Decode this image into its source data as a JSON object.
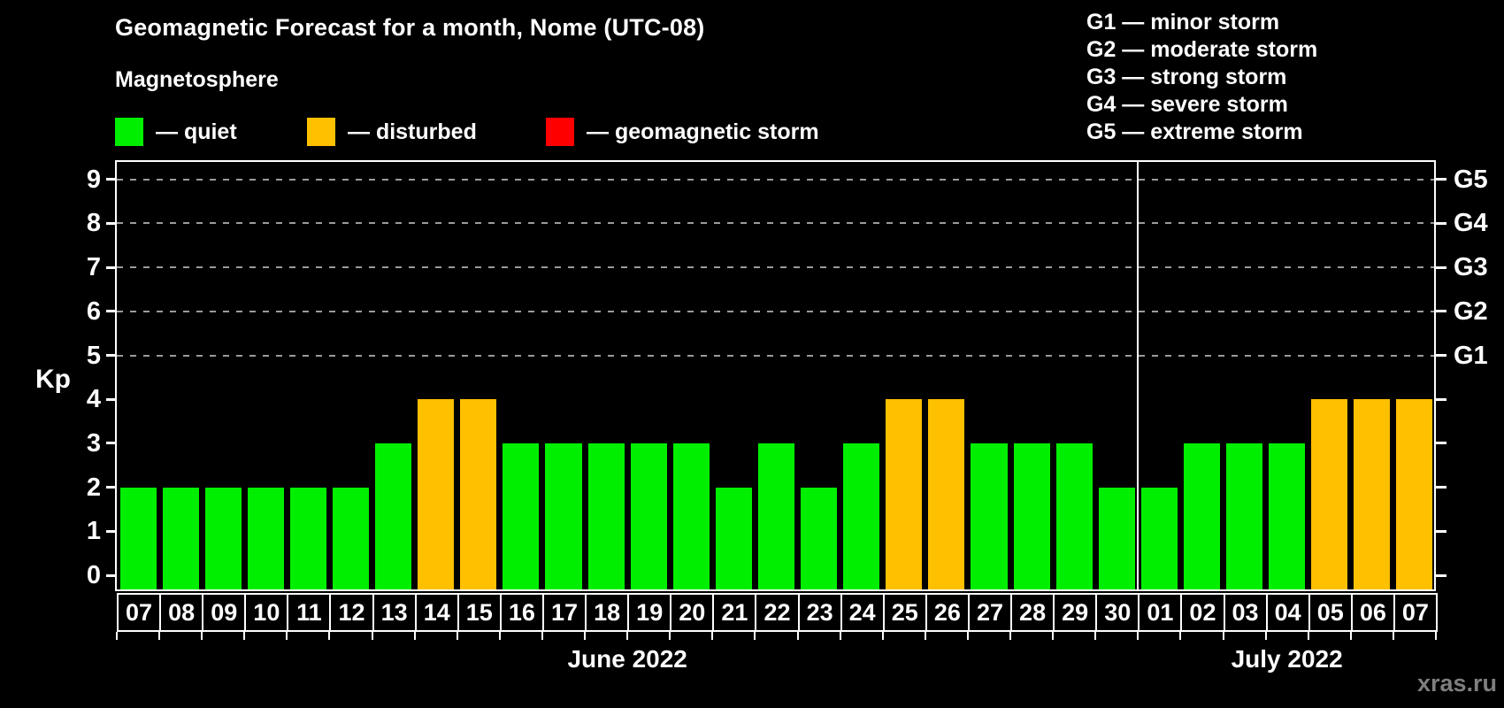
{
  "title": "Geomagnetic Forecast for a month, Nome (UTC-08)",
  "subtitle": "Magnetosphere",
  "dash": "—",
  "legend": {
    "items": [
      {
        "label": "quiet",
        "status": "quiet",
        "color": "#00ef00"
      },
      {
        "label": "disturbed",
        "status": "disturbed",
        "color": "#ffc000"
      },
      {
        "label": "geomagnetic storm",
        "status": "storm",
        "color": "#ff0000"
      }
    ]
  },
  "g_scale_legend": [
    {
      "code": "G1",
      "desc": "minor storm"
    },
    {
      "code": "G2",
      "desc": "moderate storm"
    },
    {
      "code": "G3",
      "desc": "strong storm"
    },
    {
      "code": "G4",
      "desc": "severe storm"
    },
    {
      "code": "G5",
      "desc": "extreme storm"
    }
  ],
  "watermark": "xras.ru",
  "colors": {
    "quiet": "#00ef00",
    "disturbed": "#ffc000",
    "storm": "#ff0000",
    "grid": "#9b9b9b",
    "background": "#000000"
  },
  "chart_data": {
    "type": "bar",
    "title": "Geomagnetic Forecast for a month, Nome (UTC-08)",
    "ylabel": "Kp",
    "ylim": [
      0,
      9
    ],
    "y_ticks": [
      "0",
      "1",
      "2",
      "3",
      "4",
      "5",
      "6",
      "7",
      "8",
      "9"
    ],
    "right_axis_labels": [
      {
        "code": "G1",
        "kp": 5
      },
      {
        "code": "G2",
        "kp": 6
      },
      {
        "code": "G3",
        "kp": 7
      },
      {
        "code": "G4",
        "kp": 8
      },
      {
        "code": "G5",
        "kp": 9
      }
    ],
    "gridlines_at_kp": [
      5,
      6,
      7,
      8,
      9
    ],
    "legend_position": "top-left",
    "months": [
      {
        "label": "June 2022",
        "days": [
          {
            "day": "07",
            "kp": 2,
            "status": "quiet"
          },
          {
            "day": "08",
            "kp": 2,
            "status": "quiet"
          },
          {
            "day": "09",
            "kp": 2,
            "status": "quiet"
          },
          {
            "day": "10",
            "kp": 2,
            "status": "quiet"
          },
          {
            "day": "11",
            "kp": 2,
            "status": "quiet"
          },
          {
            "day": "12",
            "kp": 2,
            "status": "quiet"
          },
          {
            "day": "13",
            "kp": 3,
            "status": "quiet"
          },
          {
            "day": "14",
            "kp": 4,
            "status": "disturbed"
          },
          {
            "day": "15",
            "kp": 4,
            "status": "disturbed"
          },
          {
            "day": "16",
            "kp": 3,
            "status": "quiet"
          },
          {
            "day": "17",
            "kp": 3,
            "status": "quiet"
          },
          {
            "day": "18",
            "kp": 3,
            "status": "quiet"
          },
          {
            "day": "19",
            "kp": 3,
            "status": "quiet"
          },
          {
            "day": "20",
            "kp": 3,
            "status": "quiet"
          },
          {
            "day": "21",
            "kp": 2,
            "status": "quiet"
          },
          {
            "day": "22",
            "kp": 3,
            "status": "quiet"
          },
          {
            "day": "23",
            "kp": 2,
            "status": "quiet"
          },
          {
            "day": "24",
            "kp": 3,
            "status": "quiet"
          },
          {
            "day": "25",
            "kp": 4,
            "status": "disturbed"
          },
          {
            "day": "26",
            "kp": 4,
            "status": "disturbed"
          },
          {
            "day": "27",
            "kp": 3,
            "status": "quiet"
          },
          {
            "day": "28",
            "kp": 3,
            "status": "quiet"
          },
          {
            "day": "29",
            "kp": 3,
            "status": "quiet"
          },
          {
            "day": "30",
            "kp": 2,
            "status": "quiet"
          }
        ]
      },
      {
        "label": "July 2022",
        "days": [
          {
            "day": "01",
            "kp": 2,
            "status": "quiet"
          },
          {
            "day": "02",
            "kp": 3,
            "status": "quiet"
          },
          {
            "day": "03",
            "kp": 3,
            "status": "quiet"
          },
          {
            "day": "04",
            "kp": 3,
            "status": "quiet"
          },
          {
            "day": "05",
            "kp": 4,
            "status": "disturbed"
          },
          {
            "day": "06",
            "kp": 4,
            "status": "disturbed"
          },
          {
            "day": "07",
            "kp": 4,
            "status": "disturbed"
          }
        ]
      }
    ]
  }
}
